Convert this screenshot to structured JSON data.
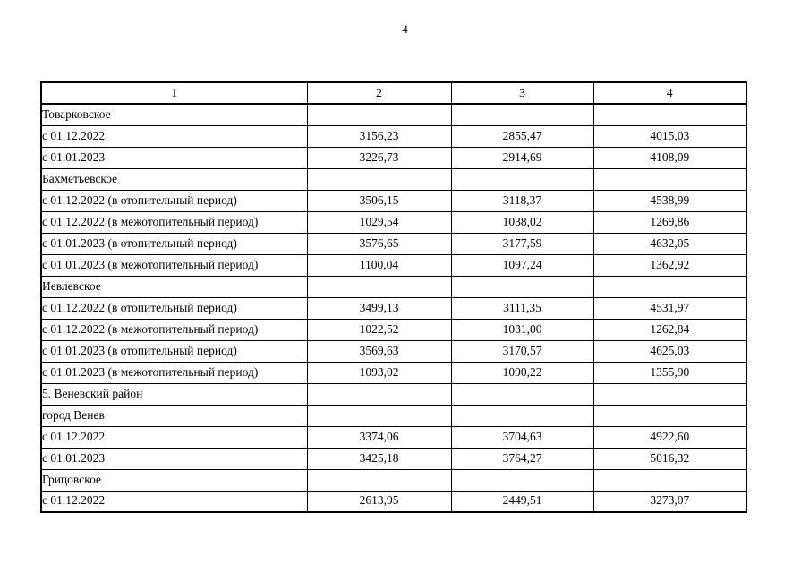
{
  "page": {
    "number": "4"
  },
  "table": {
    "headers": [
      "1",
      "2",
      "3",
      "4"
    ],
    "rows": [
      {
        "label": "Товарковское",
        "values": [
          "",
          "",
          ""
        ]
      },
      {
        "label": "с 01.12.2022",
        "values": [
          "3156,23",
          "2855,47",
          "4015,03"
        ]
      },
      {
        "label": "с 01.01.2023",
        "values": [
          "3226,73",
          "2914,69",
          "4108,09"
        ]
      },
      {
        "label": "Бахметьевское",
        "values": [
          "",
          "",
          ""
        ]
      },
      {
        "label": "с 01.12.2022 (в отопительный период)",
        "values": [
          "3506,15",
          "3118,37",
          "4538,99"
        ]
      },
      {
        "label": "с 01.12.2022 (в межотопительный период)",
        "values": [
          "1029,54",
          "1038,02",
          "1269,86"
        ]
      },
      {
        "label": "с 01.01.2023 (в отопительный период)",
        "values": [
          "3576,65",
          "3177,59",
          "4632,05"
        ]
      },
      {
        "label": "с 01.01.2023 (в межотопительный период)",
        "values": [
          "1100,04",
          "1097,24",
          "1362,92"
        ]
      },
      {
        "label": "Иевлевское",
        "values": [
          "",
          "",
          ""
        ]
      },
      {
        "label": "с 01.12.2022 (в отопительный период)",
        "values": [
          "3499,13",
          "3111,35",
          "4531,97"
        ]
      },
      {
        "label": "с 01.12.2022 (в межотопительный период)",
        "values": [
          "1022,52",
          "1031,00",
          "1262,84"
        ]
      },
      {
        "label": "с 01.01.2023 (в отопительный период)",
        "values": [
          "3569,63",
          "3170,57",
          "4625,03"
        ]
      },
      {
        "label": "с 01.01.2023 (в межотопительный период)",
        "values": [
          "1093,02",
          "1090,22",
          "1355,90"
        ]
      },
      {
        "label": "5. Веневский район",
        "values": [
          "",
          "",
          ""
        ]
      },
      {
        "label": "город Венев",
        "values": [
          "",
          "",
          ""
        ]
      },
      {
        "label": "с 01.12.2022",
        "values": [
          "3374,06",
          "3704,63",
          "4922,60"
        ]
      },
      {
        "label": "с 01.01.2023",
        "values": [
          "3425,18",
          "3764,27",
          "5016,32"
        ]
      },
      {
        "label": "Грицовское",
        "values": [
          "",
          "",
          ""
        ]
      },
      {
        "label": "с 01.12.2022",
        "values": [
          "2613,95",
          "2449,51",
          "3273,07"
        ]
      }
    ]
  }
}
